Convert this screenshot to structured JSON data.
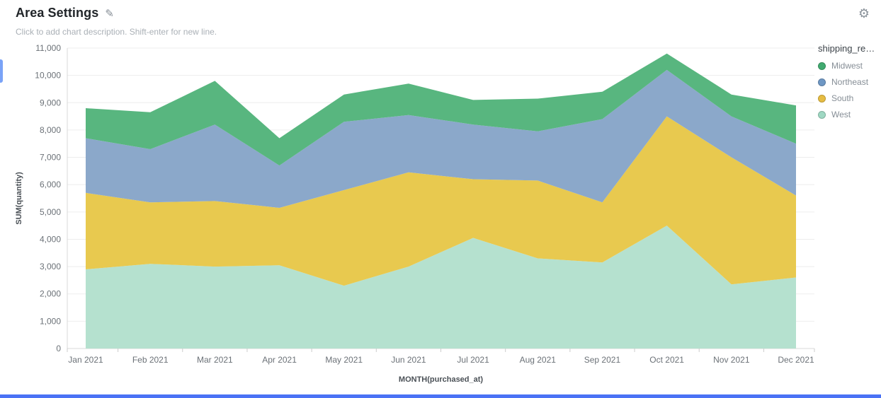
{
  "header": {
    "title": "Area Settings",
    "subtitle": "Click to add chart description. Shift-enter for new line."
  },
  "accents": {
    "left_bar_color": "#7aa3f7",
    "bottom_bar_color": "#4a72f5"
  },
  "legend": {
    "title": "shipping_re…",
    "items": [
      {
        "label": "Midwest",
        "color": "#41aa70"
      },
      {
        "label": "Northeast",
        "color": "#6e97c4"
      },
      {
        "label": "South",
        "color": "#e6bc42"
      },
      {
        "label": "West",
        "color": "#9fd8c3"
      }
    ]
  },
  "chart_data": {
    "type": "area",
    "stacked": true,
    "title": "",
    "xlabel": "MONTH(purchased_at)",
    "ylabel": "SUM(quantity)",
    "x": [
      "Jan 2021",
      "Feb 2021",
      "Mar 2021",
      "Apr 2021",
      "May 2021",
      "Jun 2021",
      "Jul 2021",
      "Aug 2021",
      "Sep 2021",
      "Oct 2021",
      "Nov 2021",
      "Dec 2021"
    ],
    "ylim": [
      0,
      11000
    ],
    "ytick_step": 1000,
    "grid": true,
    "legend_position": "right",
    "series": [
      {
        "name": "West",
        "fill": "#b5e1cf",
        "values": [
          2900,
          3100,
          3000,
          3050,
          2300,
          3000,
          4050,
          3300,
          3150,
          4500,
          2350,
          2600
        ]
      },
      {
        "name": "South",
        "fill": "#e8c94f",
        "values": [
          2800,
          2250,
          2400,
          2100,
          3500,
          3450,
          2150,
          2850,
          2200,
          4000,
          4650,
          3000
        ]
      },
      {
        "name": "Northeast",
        "fill": "#8ba8ca",
        "values": [
          2000,
          1950,
          2800,
          1550,
          2500,
          2100,
          2000,
          1800,
          3050,
          1700,
          1500,
          1900
        ]
      },
      {
        "name": "Midwest",
        "fill": "#58b67f",
        "values": [
          1100,
          1350,
          1600,
          1000,
          1000,
          1150,
          900,
          1200,
          1000,
          600,
          800,
          1400
        ]
      }
    ],
    "stack_order_note": "series listed bottom-to-top"
  }
}
